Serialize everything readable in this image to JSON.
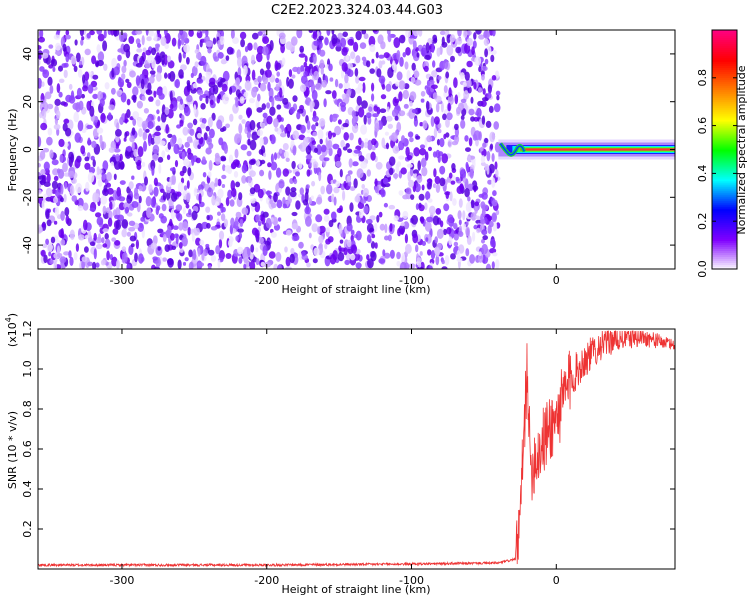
{
  "chart_data": [
    {
      "type": "heatmap",
      "title": "C2E2.2023.324.03.44.G03",
      "xlabel": "Height of straight line (km)",
      "ylabel": "Frequency (Hz)",
      "xlim": [
        -358,
        82
      ],
      "ylim": [
        -50,
        50
      ],
      "x_ticks": [
        -300,
        -200,
        -100,
        0
      ],
      "y_ticks": [
        -40,
        -20,
        0,
        20,
        40
      ],
      "noise_region_x": [
        -358,
        -40
      ],
      "signal_line": {
        "x_start": -40,
        "x_end": 82,
        "frequency_hz": 0
      },
      "colorbar": {
        "label": "Normalized spectral amplitude",
        "range": [
          0,
          1
        ],
        "ticks": [
          0.0,
          0.2,
          0.4,
          0.6,
          0.8
        ],
        "colors": [
          "#ffffff",
          "#8000ff",
          "#0000ff",
          "#00ffff",
          "#00ff00",
          "#ffff00",
          "#ff8000",
          "#ff0000",
          "#ff0080"
        ]
      },
      "grid": false
    },
    {
      "type": "line",
      "xlabel": "Height of straight line (km)",
      "ylabel": "SNR (10 * v/v)",
      "multiplier_label": "(x10",
      "multiplier_exponent": "4",
      "multiplier_close": ")",
      "xlim": [
        -358,
        82
      ],
      "ylim": [
        0,
        1.2
      ],
      "x_ticks": [
        -300,
        -200,
        -100,
        0
      ],
      "y_ticks": [
        0.2,
        0.4,
        0.6,
        0.8,
        1.0,
        1.2
      ],
      "series": [
        {
          "color": "#ee3333",
          "x": [
            -358,
            -300,
            -200,
            -100,
            -40,
            -28,
            -25,
            -22,
            -20,
            -18,
            -15,
            -10,
            -5,
            0,
            5,
            10,
            15,
            20,
            25,
            30,
            40,
            50,
            60,
            70,
            82
          ],
          "values": [
            0.02,
            0.02,
            0.02,
            0.025,
            0.03,
            0.05,
            0.25,
            0.7,
            1.05,
            0.5,
            0.55,
            0.62,
            0.7,
            0.75,
            0.85,
            0.95,
            1.0,
            1.05,
            1.08,
            1.12,
            1.15,
            1.16,
            1.16,
            1.14,
            1.12
          ]
        }
      ],
      "grid": false
    }
  ]
}
